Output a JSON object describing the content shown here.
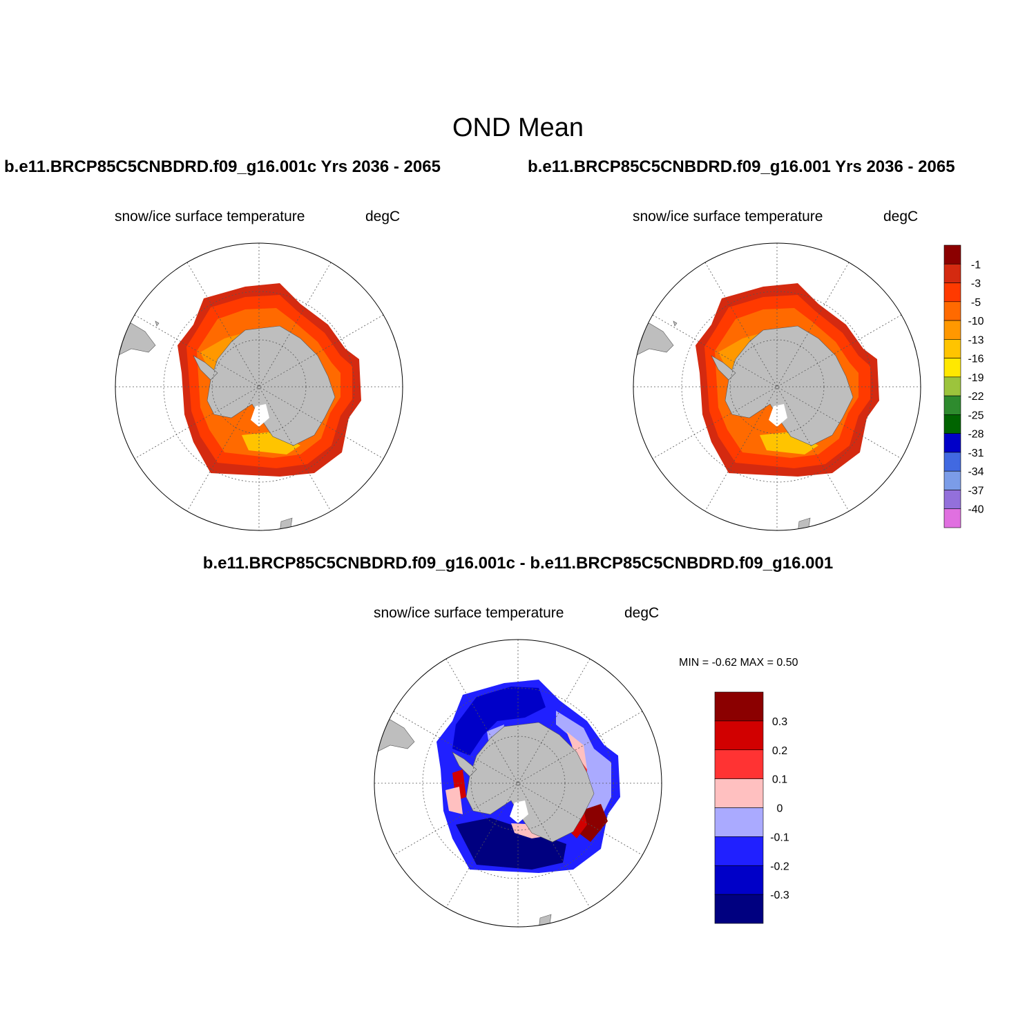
{
  "figure": {
    "title": "OND Mean"
  },
  "panels": [
    {
      "case_label": "b.e11.BRCP85C5CNBDRD.f09_g16.001c  Yrs 2036 - 2065",
      "variable": "snow/ice surface temperature",
      "units": "degC"
    },
    {
      "case_label": "b.e11.BRCP85C5CNBDRD.f09_g16.001  Yrs 2036 - 2065",
      "variable": "snow/ice surface temperature",
      "units": "degC"
    },
    {
      "case_label": "b.e11.BRCP85C5CNBDRD.f09_g16.001c - b.e11.BRCP85C5CNBDRD.f09_g16.001",
      "variable": "snow/ice surface temperature",
      "units": "degC",
      "minmax": "MIN =  -0.62 MAX =   0.50"
    }
  ],
  "colorbar_abs": {
    "levels": [
      "-1",
      "-3",
      "-5",
      "-10",
      "-13",
      "-16",
      "-19",
      "-22",
      "-25",
      "-28",
      "-31",
      "-34",
      "-37",
      "-40"
    ],
    "colors": [
      "#8b0000",
      "#d42a10",
      "#ff3a00",
      "#ff6a00",
      "#ff9800",
      "#ffc400",
      "#ffe800",
      "#9cc43c",
      "#2e8b2e",
      "#006400",
      "#0000c8",
      "#4169e1",
      "#7b9ce8",
      "#9370db",
      "#e070e0"
    ]
  },
  "colorbar_diff": {
    "levels": [
      "0.3",
      "0.2",
      "0.1",
      "0",
      "-0.1",
      "-0.2",
      "-0.3"
    ],
    "colors": [
      "#8b0000",
      "#d10000",
      "#ff3333",
      "#ffc0c0",
      "#aaaaff",
      "#2020ff",
      "#0000c8",
      "#000080"
    ]
  },
  "colors": {
    "land": "#bebebe",
    "ice_outer": "#d42a10",
    "ice_mid1": "#ff3a00",
    "ice_mid2": "#ff6a00",
    "ice_inner": "#ff9800",
    "ice_inner2": "#ffc400"
  }
}
